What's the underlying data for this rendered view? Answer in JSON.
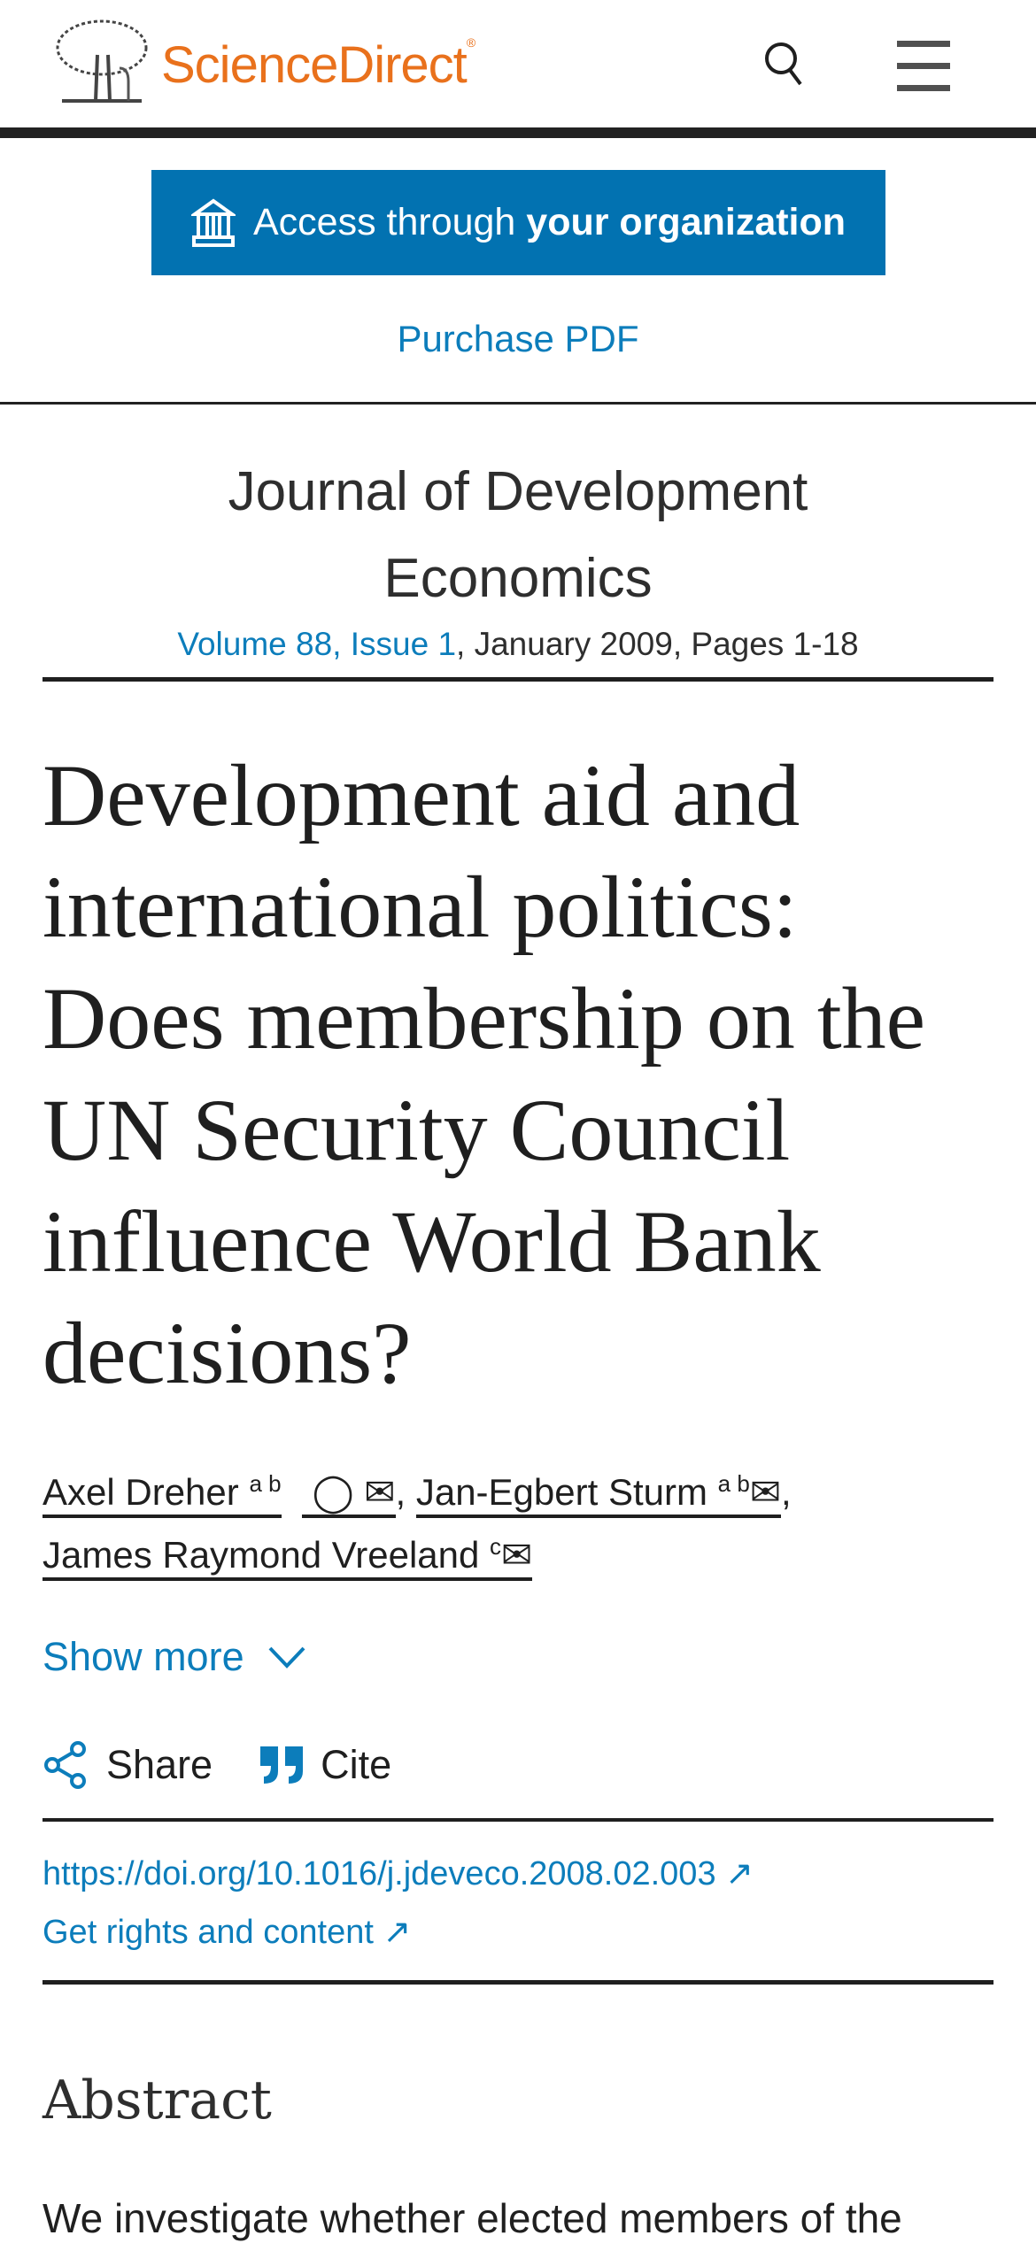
{
  "header": {
    "brand": "ScienceDirect",
    "registered": "®",
    "search_icon": "search-icon",
    "menu_icon": "hamburger-menu-icon"
  },
  "access": {
    "prefix": "Access through ",
    "bold": "your organization",
    "icon": "institution-icon"
  },
  "purchase": "Purchase PDF",
  "journal": {
    "title": "Journal of Development Economics",
    "volume_link": "Volume 88, Issue 1",
    "details": ", January 2009, Pages 1-18"
  },
  "article": {
    "title": "Development aid and international politics: Does membership on the UN Security Council influence World Bank decisions?"
  },
  "authors": [
    {
      "name": "Axel Dreher",
      "sup": "a b",
      "sep": ","
    },
    {
      "name": "Jan-Egbert Sturm",
      "sup": "a b",
      "sep": ","
    },
    {
      "name": "James Raymond Vreeland",
      "sup": "c",
      "sep": ""
    }
  ],
  "show_more": "Show more",
  "actions": {
    "share": "Share",
    "cite": "Cite"
  },
  "doi": "https://doi.org/10.1016/j.jdeveco.2008.02.003",
  "rights": "Get rights and content",
  "abstract": {
    "heading": "Abstract",
    "text": "We investigate whether elected members of the"
  },
  "colors": {
    "brand": "#e9711c",
    "link": "#0c7dbb",
    "button": "#0272b1"
  }
}
